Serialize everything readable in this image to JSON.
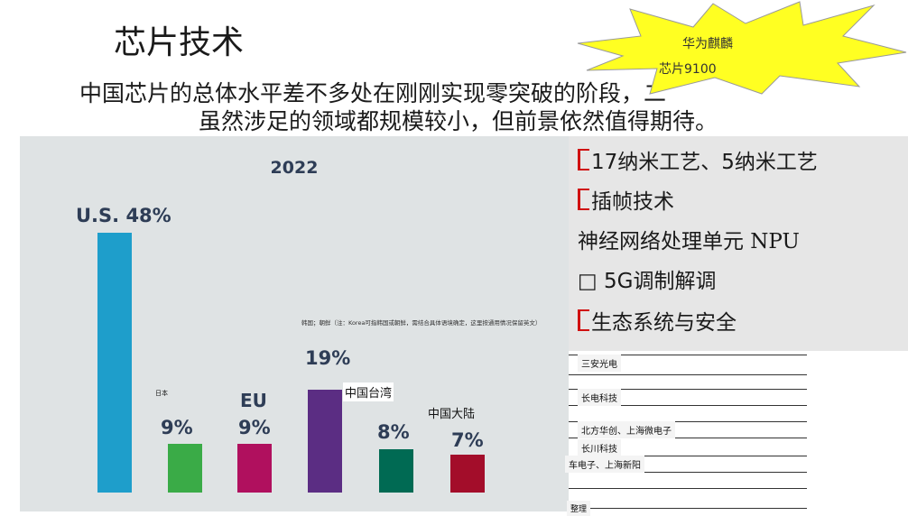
{
  "slide": {
    "title": "芯片技术",
    "subtitle_line1": "中国芯片的总体水平差不多处在刚刚实现零突破的阶段，二",
    "subtitle_line2": "虽然涉足的领域都规模较小，但前景依然值得期待。"
  },
  "callout": {
    "line1": "华为麒麟",
    "line2": "芯片9100",
    "fill_color": "#ffff22"
  },
  "chart_data": {
    "type": "bar",
    "title": "2022",
    "categories": [
      "U.S.",
      "日本",
      "EU",
      "",
      "中国台湾",
      "中国大陆"
    ],
    "value_labels": [
      "U.S. 48%",
      "9%",
      "9%",
      "19%",
      "8%",
      "7%"
    ],
    "values": [
      48,
      9,
      9,
      19,
      8,
      7
    ],
    "colors": [
      "#1e9ecb",
      "#3aab47",
      "#b0105e",
      "#5b2d83",
      "#006a53",
      "#a30d2a"
    ],
    "note": "韩国；朝鲜（注：Korea可指韩国或朝鲜，需结合具体语境确定，这里按通用情况保留英文）",
    "eu_label": "EU"
  },
  "features": {
    "items": [
      "17纳米工艺、5纳米工艺",
      "插帧技术",
      "神经网络处理单元 NPU",
      "□ 5G调制解调",
      "生态系统与安全"
    ]
  },
  "companies": {
    "items": [
      "三安光电",
      "长电科技",
      "北方华创、上海微电子",
      "长川科技",
      "车电子、上海新阳",
      "整理"
    ]
  }
}
